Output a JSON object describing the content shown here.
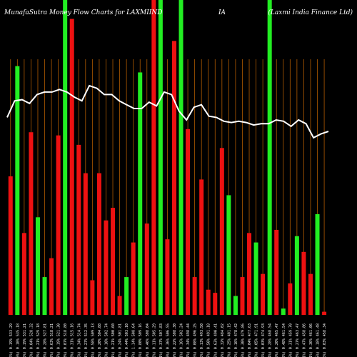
{
  "chart_data": {
    "type": "bar",
    "title_left": "MunafaSutra  Money Flow  Charts for LAXMIIND",
    "title_mid": "IA",
    "title_right": "(Laxmi  India  Finance  Ltd)",
    "categories": [
      "(0.46%) 0.19% 533.29",
      "(0.19%) 0.10% 535.18",
      "(0.35%) 0.19% 531.21",
      "(0.08%) 0.04% 528.32",
      "(0.40%) 0.21% 529.18",
      "(0.53%) 0.28% 527.81",
      "(1.22%) 0.63% 518.21",
      "(0.37%) 0.19% 521.30",
      "(0.13%) 0.07% 518.80",
      "(0.60%) 0.31% 515.16",
      "(0.65%) 0.34% 514.74",
      "(0.51%) 0.27% 512.35",
      "(1.14%) 0.58% 509.13",
      "(0.38%) 0.20% 504.88",
      "(0.20%) 0.10% 502.74",
      "(0.41%) 0.21% 500.60",
      "(0.47%) 0.24% 501.81",
      "(0.87%) 0.44% 503.10",
      "(2.27%) 1.14% 508.64",
      "(1.55%) 0.80% 509.16",
      "(0.89%) 0.46% 508.04",
      "(0.22%) 0.11% 505.29",
      "(0.71%) 0.37% 507.83",
      "(0.70%) 0.36% 506.55",
      "(0.42%) 0.22% 508.30",
      "(0.31%) 0.16% 502.24",
      "(0.67%) 0.34% 498.44",
      "(0.16%) 0.08% 496.25",
      "(0.25%) 0.13% 493.50",
      "(0.97%) 0.50% 491.18",
      "(1.22%) 0.63% 490.41",
      "(0.62%) 0.32% 484.02",
      "(0.49%) 0.25% 481.15",
      "(0.32%) 0.16% 478.42",
      "(0.58%) 0.30% 479.86",
      "(0.07%) 0.04% 477.63",
      "(0.10%) 0.05% 471.91",
      "(0.05%) 0.03% 474.93",
      "(0.54%) 0.28% 468.54",
      "(0.39%) 0.20% 465.47",
      "(0.92%) 0.48% 461.54",
      "(0.59%) 0.31% 459.70",
      "(0.53%) 0.27% 463.47",
      "(0.91%) 0.47% 458.86",
      "(0.71%) 0.36% 461.06",
      "(0.35%) 0.18% 461.48",
      "(0.06%) 0.03% 458.34"
    ],
    "colors": [
      "r",
      "g",
      "r",
      "r",
      "g",
      "g",
      "r",
      "r",
      "g",
      "r",
      "r",
      "r",
      "r",
      "r",
      "r",
      "r",
      "r",
      "g",
      "r",
      "g",
      "r",
      "r",
      "g",
      "r",
      "r",
      "g",
      "r",
      "r",
      "r",
      "r",
      "r",
      "r",
      "g",
      "g",
      "r",
      "r",
      "g",
      "r",
      "g",
      "r",
      "g",
      "r",
      "g",
      "r",
      "r",
      "g",
      "r"
    ],
    "bar_values": [
      0.44,
      0.79,
      0.26,
      0.58,
      0.31,
      0.12,
      0.18,
      0.57,
      1.0,
      0.94,
      0.54,
      0.45,
      0.11,
      0.45,
      0.3,
      0.34,
      0.06,
      0.12,
      0.23,
      0.77,
      0.29,
      1.0,
      1.0,
      0.24,
      0.87,
      1.0,
      0.59,
      0.12,
      0.43,
      0.08,
      0.07,
      0.53,
      0.38,
      0.06,
      0.12,
      0.26,
      0.23,
      0.13,
      1.0,
      0.27,
      0.02,
      0.1,
      0.25,
      0.2,
      0.13,
      0.32,
      0.01
    ],
    "line_values": [
      0.2,
      0.33,
      0.34,
      0.31,
      0.38,
      0.4,
      0.4,
      0.42,
      0.4,
      0.36,
      0.33,
      0.45,
      0.43,
      0.38,
      0.38,
      0.33,
      0.3,
      0.27,
      0.27,
      0.32,
      0.29,
      0.4,
      0.38,
      0.25,
      0.18,
      0.28,
      0.3,
      0.21,
      0.2,
      0.17,
      0.16,
      0.17,
      0.16,
      0.14,
      0.15,
      0.15,
      0.18,
      0.17,
      0.13,
      0.18,
      0.15,
      0.04,
      0.07,
      0.09
    ]
  },
  "colors": {
    "background": "#000000",
    "grid": "#b05a00",
    "buy": "#22ee22",
    "sell": "#ee1111",
    "line": "#ffffff",
    "text": "#ffffff"
  }
}
